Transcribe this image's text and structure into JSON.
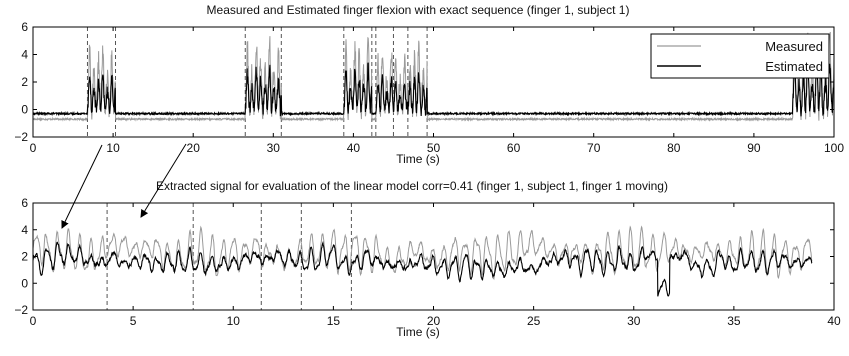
{
  "chart_data": [
    {
      "type": "line",
      "title": "Measured and Estimated finger flexion with exact sequence (finger 1, subject 1)",
      "xlabel": "Time (s)",
      "ylabel": "",
      "xlim": [
        0,
        100
      ],
      "ylim": [
        -2,
        6
      ],
      "xticks": [
        0,
        10,
        20,
        30,
        40,
        50,
        60,
        70,
        80,
        90,
        100
      ],
      "yticks": [
        -2,
        0,
        2,
        4,
        6
      ],
      "legend": {
        "placement": "top-right",
        "entries": [
          "Measured",
          "Estimated"
        ]
      },
      "event_lines": [
        6.8,
        10.3,
        26.5,
        31.0,
        38.8,
        42.3,
        42.8,
        45.0,
        46.8,
        49.2
      ],
      "active_segments": [
        {
          "start": 6.8,
          "end": 10.3,
          "measured_amp": 4.5,
          "estimated_amp": 2.5
        },
        {
          "start": 26.5,
          "end": 31.0,
          "measured_amp": 5.0,
          "estimated_amp": 3.0
        },
        {
          "start": 38.8,
          "end": 42.3,
          "measured_amp": 4.8,
          "estimated_amp": 3.0
        },
        {
          "start": 42.8,
          "end": 45.0,
          "measured_amp": 4.5,
          "estimated_amp": 2.4
        },
        {
          "start": 45.0,
          "end": 46.8,
          "measured_amp": 4.0,
          "estimated_amp": 2.0
        },
        {
          "start": 46.8,
          "end": 49.2,
          "measured_amp": 4.8,
          "estimated_amp": 2.8
        },
        {
          "start": 94.8,
          "end": 100.0,
          "measured_amp": 5.5,
          "estimated_amp": 3.2
        }
      ],
      "series": [
        {
          "name": "Measured",
          "color": "#9a9a9a",
          "baseline": -0.7,
          "osc_period": 0.55
        },
        {
          "name": "Estimated",
          "color": "#000000",
          "baseline": -0.3,
          "osc_period": 0.55
        }
      ]
    },
    {
      "type": "line",
      "title": "Extracted signal for evaluation of the linear model corr=0.41 (finger 1, subject 1, finger 1 moving)",
      "xlabel": "Time (s)",
      "ylabel": "",
      "xlim": [
        0,
        40
      ],
      "ylim": [
        -2,
        6
      ],
      "xticks": [
        0,
        5,
        10,
        15,
        20,
        25,
        30,
        35,
        40
      ],
      "yticks": [
        -2,
        0,
        2,
        4,
        6
      ],
      "event_lines": [
        3.7,
        8.0,
        11.4,
        13.4,
        15.9
      ],
      "duration": 38.9,
      "series": [
        {
          "name": "Measured",
          "color": "#9a9a9a",
          "mean": 2.3,
          "amp": 2.6,
          "osc_period": 0.55
        },
        {
          "name": "Estimated",
          "color": "#000000",
          "mean": 1.5,
          "amp": 1.4,
          "osc_period": 0.55
        }
      ]
    }
  ]
}
